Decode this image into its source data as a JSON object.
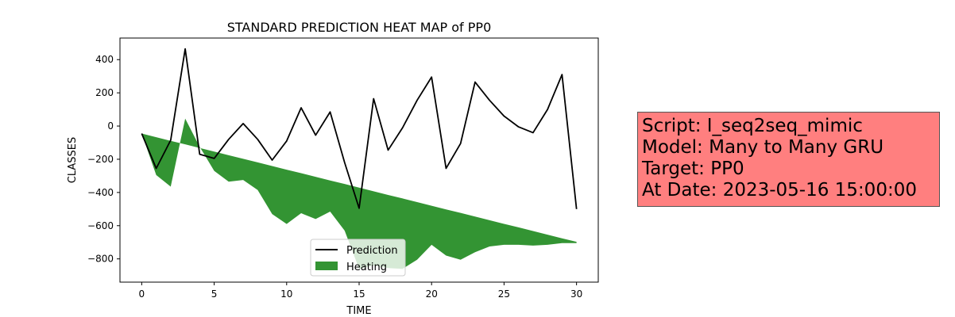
{
  "chart_data": {
    "type": "line",
    "title": "STANDARD PREDICTION HEAT MAP of PP0",
    "xlabel": "TIME",
    "ylabel": "CLASSES",
    "xlim": [
      -1.5,
      31.5
    ],
    "ylim": [
      -940,
      530
    ],
    "xticks": [
      0,
      5,
      10,
      15,
      20,
      25,
      30
    ],
    "yticks": [
      -800,
      -600,
      -400,
      -200,
      0,
      200,
      400
    ],
    "legend_position": "lower-center",
    "grid": false,
    "series": [
      {
        "name": "Prediction",
        "kind": "line",
        "color": "#000000",
        "x": [
          0,
          1,
          2,
          3,
          4,
          5,
          6,
          7,
          8,
          9,
          10,
          11,
          12,
          13,
          14,
          15,
          16,
          17,
          18,
          19,
          20,
          21,
          22,
          23,
          24,
          25,
          26,
          27,
          28,
          29,
          30
        ],
        "values": [
          -45,
          -255,
          -85,
          465,
          -170,
          -195,
          -80,
          15,
          -80,
          -205,
          -90,
          110,
          -55,
          85,
          -220,
          -495,
          165,
          -145,
          -10,
          155,
          295,
          -255,
          -105,
          265,
          155,
          60,
          -5,
          -40,
          100,
          310,
          -500
        ]
      },
      {
        "name": "Heating",
        "kind": "area",
        "color": "#228b22",
        "x": [
          0,
          1,
          2,
          3,
          4,
          5,
          6,
          7,
          8,
          9,
          10,
          11,
          12,
          13,
          14,
          15,
          16,
          17,
          18,
          19,
          20,
          21,
          22,
          23,
          24,
          25,
          26,
          27,
          28,
          29,
          30
        ],
        "values": [
          -45,
          -295,
          -365,
          45,
          -125,
          -270,
          -335,
          -325,
          -385,
          -530,
          -590,
          -525,
          -560,
          -515,
          -630,
          -860,
          -840,
          -855,
          -860,
          -805,
          -715,
          -780,
          -805,
          -760,
          -725,
          -715,
          -715,
          -720,
          -715,
          -705,
          -705
        ],
        "baseline": [
          -45,
          -67,
          -89,
          -110,
          -132,
          -154,
          -176,
          -197,
          -219,
          -241,
          -263,
          -284,
          -306,
          -328,
          -349,
          -371,
          -393,
          -415,
          -436,
          -458,
          -480,
          -502,
          -523,
          -545,
          -567,
          -589,
          -610,
          -632,
          -654,
          -676,
          -697
        ]
      }
    ]
  },
  "info": {
    "lines": [
      "Script: I_seq2seq_mimic",
      "Model: Many to Many GRU",
      "Target: PP0",
      "At Date: 2023-05-16 15:00:00"
    ],
    "background": "#ff7f7f"
  }
}
